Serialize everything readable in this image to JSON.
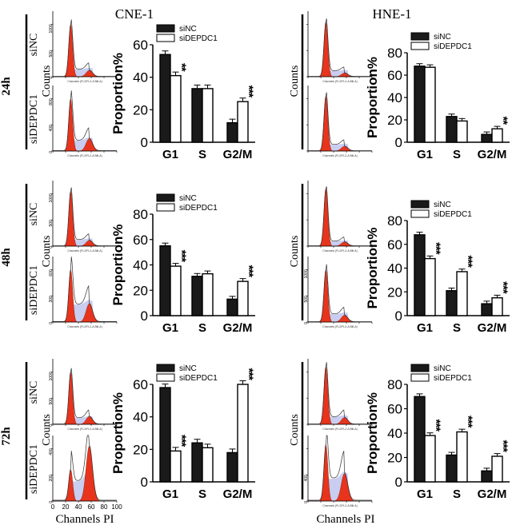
{
  "figure": {
    "cell_lines": [
      "CNE-1",
      "HNE-1"
    ],
    "timepoints": [
      "24h",
      "48h",
      "72h"
    ],
    "conditions": [
      "siNC",
      "siDEPDC1"
    ],
    "histogram_ylabel": "Counts",
    "histogram_xlabel": "Channels PI",
    "histogram_axis_caption": "Channels (FL2/FL2-A Bill-A)",
    "histogram_xticks": [
      "0",
      "20",
      "40",
      "60",
      "80",
      "100"
    ],
    "sig_mark": "***",
    "sig_mark_2": "**",
    "colors": {
      "siNC": "#1a1a1a",
      "siDEPDC1": "#ffffff",
      "g1_peak": "#e8341c",
      "s_phase": "#c9cdf0"
    }
  },
  "chart_data": [
    {
      "type": "bar",
      "panel": "CNE-1 24h",
      "title": "",
      "xlabel": "",
      "ylabel": "Proportion%",
      "categories": [
        "G1",
        "S",
        "G2/M"
      ],
      "ylim": [
        0,
        60
      ],
      "yticks": [
        "0",
        "20",
        "40",
        "60"
      ],
      "series": [
        {
          "name": "siNC",
          "values": [
            54,
            33,
            12
          ]
        },
        {
          "name": "siDEPDC1",
          "values": [
            41,
            33,
            25
          ]
        }
      ],
      "annotations": [
        "**",
        "",
        "***"
      ],
      "legend": "top"
    },
    {
      "type": "bar",
      "panel": "HNE-1 24h",
      "title": "",
      "xlabel": "",
      "ylabel": "Proportion%",
      "categories": [
        "G1",
        "S",
        "G2/M"
      ],
      "ylim": [
        0,
        80
      ],
      "yticks": [
        "0",
        "20",
        "40",
        "60",
        "80"
      ],
      "series": [
        {
          "name": "siNC",
          "values": [
            68,
            23,
            7
          ]
        },
        {
          "name": "siDEPDC1",
          "values": [
            67,
            19,
            12
          ]
        }
      ],
      "annotations": [
        "",
        "",
        "**"
      ],
      "legend": "top"
    },
    {
      "type": "bar",
      "panel": "CNE-1 48h",
      "title": "",
      "xlabel": "",
      "ylabel": "Proportion%",
      "categories": [
        "G1",
        "S",
        "G2/M"
      ],
      "ylim": [
        0,
        80
      ],
      "yticks": [
        "0",
        "20",
        "40",
        "60",
        "80"
      ],
      "series": [
        {
          "name": "siNC",
          "values": [
            55,
            31,
            13
          ]
        },
        {
          "name": "siDEPDC1",
          "values": [
            39,
            33,
            27
          ]
        }
      ],
      "annotations": [
        "***",
        "",
        "***"
      ],
      "legend": "top"
    },
    {
      "type": "bar",
      "panel": "HNE-1 48h",
      "title": "",
      "xlabel": "",
      "ylabel": "Proportion%",
      "categories": [
        "G1",
        "S",
        "G2/M"
      ],
      "ylim": [
        0,
        80
      ],
      "yticks": [
        "0",
        "20",
        "40",
        "60",
        "80"
      ],
      "series": [
        {
          "name": "siNC",
          "values": [
            68,
            21,
            10
          ]
        },
        {
          "name": "siDEPDC1",
          "values": [
            48,
            37,
            15
          ]
        }
      ],
      "annotations": [
        "***",
        "***",
        "***"
      ],
      "legend": "top"
    },
    {
      "type": "bar",
      "panel": "CNE-1 72h",
      "title": "",
      "xlabel": "",
      "ylabel": "Proportion%",
      "categories": [
        "G1",
        "S",
        "G2/M"
      ],
      "ylim": [
        0,
        60
      ],
      "yticks": [
        "0",
        "20",
        "40",
        "60"
      ],
      "series": [
        {
          "name": "siNC",
          "values": [
            58,
            24,
            18
          ]
        },
        {
          "name": "siDEPDC1",
          "values": [
            19,
            21,
            60
          ]
        }
      ],
      "annotations": [
        "***",
        "",
        "***"
      ],
      "legend": "top"
    },
    {
      "type": "bar",
      "panel": "HNE-1 72h",
      "title": "",
      "xlabel": "",
      "ylabel": "Proportion%",
      "categories": [
        "G1",
        "S",
        "G2/M"
      ],
      "ylim": [
        0,
        80
      ],
      "yticks": [
        "0",
        "20",
        "40",
        "60",
        "80"
      ],
      "series": [
        {
          "name": "siNC",
          "values": [
            70,
            22,
            9
          ]
        },
        {
          "name": "siDEPDC1",
          "values": [
            38,
            41,
            21
          ]
        }
      ],
      "annotations": [
        "***",
        "***",
        "***"
      ],
      "legend": "top"
    }
  ],
  "histograms": [
    {
      "panel": "CNE-1 24h siNC",
      "yticks": [
        "0",
        "500",
        "1000"
      ],
      "ymax": 1250,
      "g1": 1000,
      "s": 140,
      "g2": 120
    },
    {
      "panel": "CNE-1 24h siDEPDC1",
      "yticks": [
        "0",
        "400",
        "800"
      ],
      "ymax": 1000,
      "g1": 800,
      "s": 160,
      "g2": 190
    },
    {
      "panel": "CNE-1 48h siNC",
      "yticks": [
        "0",
        "500",
        "1000"
      ],
      "ymax": 1250,
      "g1": 1050,
      "s": 120,
      "g2": 110
    },
    {
      "panel": "CNE-1 48h siDEPDC1",
      "yticks": [
        "0",
        "300",
        "600"
      ],
      "ymax": 750,
      "g1": 600,
      "s": 200,
      "g2": 210
    },
    {
      "panel": "CNE-1 72h siNC",
      "yticks": [
        "0",
        "500",
        "1000"
      ],
      "ymax": 1250,
      "g1": 1000,
      "s": 120,
      "g2": 150
    },
    {
      "panel": "CNE-1 72h siDEPDC1",
      "yticks": [
        "0",
        "200",
        "400"
      ],
      "ymax": 500,
      "g1": 240,
      "s": 150,
      "g2": 420
    },
    {
      "panel": "HNE-1 24h siNC",
      "yticks": [
        "",
        "",
        ""
      ],
      "ymax": 1250,
      "g1": 1050,
      "s": 110,
      "g2": 70
    },
    {
      "panel": "HNE-1 24h siDEPDC1",
      "yticks": [
        "",
        "",
        ""
      ],
      "ymax": 1250,
      "g1": 1050,
      "s": 120,
      "g2": 90
    },
    {
      "panel": "HNE-1 48h siNC",
      "yticks": [
        "",
        "",
        ""
      ],
      "ymax": 1250,
      "g1": 1100,
      "s": 90,
      "g2": 80
    },
    {
      "panel": "HNE-1 48h siDEPDC1",
      "yticks": [
        "0",
        "500",
        "1000"
      ],
      "ymax": 1250,
      "g1": 1000,
      "s": 150,
      "g2": 130
    },
    {
      "panel": "HNE-1 72h siNC",
      "yticks": [
        "",
        "",
        ""
      ],
      "ymax": 1250,
      "g1": 1100,
      "s": 140,
      "g2": 130
    },
    {
      "panel": "HNE-1 72h siDEPDC1",
      "yticks": [
        "0",
        "400",
        ""
      ],
      "ymax": 500,
      "g1": 430,
      "s": 170,
      "g2": 210
    }
  ]
}
